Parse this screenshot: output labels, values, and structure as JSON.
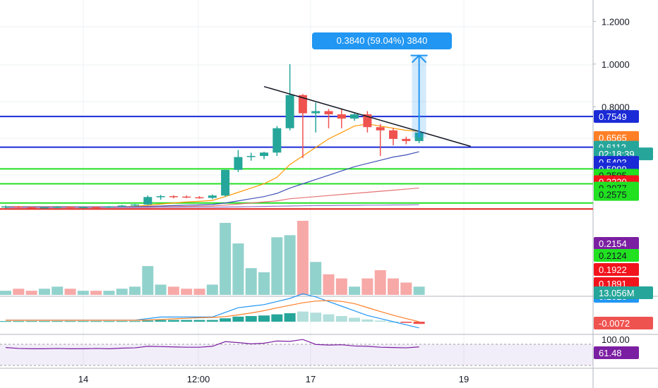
{
  "chart_data": {
    "type": "candlestick",
    "symbol_timeframe": "",
    "x_tick_labels": [
      "14",
      "12:00",
      "17",
      "19"
    ],
    "price_axis": {
      "ylim": [
        0.27,
        1.3
      ],
      "ticks": [
        "1.2000",
        "1.0000",
        "0.8000"
      ]
    },
    "candles": [
      {
        "o": 0.331,
        "h": 0.338,
        "l": 0.325,
        "c": 0.334
      },
      {
        "o": 0.334,
        "h": 0.336,
        "l": 0.326,
        "c": 0.33
      },
      {
        "o": 0.33,
        "h": 0.333,
        "l": 0.324,
        "c": 0.327
      },
      {
        "o": 0.327,
        "h": 0.332,
        "l": 0.324,
        "c": 0.33
      },
      {
        "o": 0.33,
        "h": 0.336,
        "l": 0.327,
        "c": 0.332
      },
      {
        "o": 0.332,
        "h": 0.334,
        "l": 0.326,
        "c": 0.328
      },
      {
        "o": 0.328,
        "h": 0.333,
        "l": 0.325,
        "c": 0.331
      },
      {
        "o": 0.331,
        "h": 0.335,
        "l": 0.327,
        "c": 0.329
      },
      {
        "o": 0.329,
        "h": 0.336,
        "l": 0.328,
        "c": 0.334
      },
      {
        "o": 0.334,
        "h": 0.341,
        "l": 0.331,
        "c": 0.338
      },
      {
        "o": 0.338,
        "h": 0.345,
        "l": 0.333,
        "c": 0.343
      },
      {
        "o": 0.343,
        "h": 0.385,
        "l": 0.34,
        "c": 0.378
      },
      {
        "o": 0.378,
        "h": 0.388,
        "l": 0.365,
        "c": 0.382
      },
      {
        "o": 0.382,
        "h": 0.386,
        "l": 0.372,
        "c": 0.38
      },
      {
        "o": 0.38,
        "h": 0.385,
        "l": 0.373,
        "c": 0.377
      },
      {
        "o": 0.377,
        "h": 0.382,
        "l": 0.37,
        "c": 0.374
      },
      {
        "o": 0.374,
        "h": 0.39,
        "l": 0.368,
        "c": 0.385
      },
      {
        "o": 0.385,
        "h": 0.505,
        "l": 0.38,
        "c": 0.505
      },
      {
        "o": 0.505,
        "h": 0.598,
        "l": 0.495,
        "c": 0.565
      },
      {
        "o": 0.565,
        "h": 0.585,
        "l": 0.548,
        "c": 0.57
      },
      {
        "o": 0.57,
        "h": 0.59,
        "l": 0.555,
        "c": 0.586
      },
      {
        "o": 0.586,
        "h": 0.71,
        "l": 0.57,
        "c": 0.7
      },
      {
        "o": 0.7,
        "h": 1.0,
        "l": 0.69,
        "c": 0.855
      },
      {
        "o": 0.855,
        "h": 0.86,
        "l": 0.56,
        "c": 0.77
      },
      {
        "o": 0.77,
        "h": 0.82,
        "l": 0.68,
        "c": 0.78
      },
      {
        "o": 0.78,
        "h": 0.79,
        "l": 0.7,
        "c": 0.765
      },
      {
        "o": 0.765,
        "h": 0.79,
        "l": 0.7,
        "c": 0.745
      },
      {
        "o": 0.745,
        "h": 0.77,
        "l": 0.735,
        "c": 0.765
      },
      {
        "o": 0.765,
        "h": 0.78,
        "l": 0.68,
        "c": 0.705
      },
      {
        "o": 0.705,
        "h": 0.72,
        "l": 0.57,
        "c": 0.69
      },
      {
        "o": 0.69,
        "h": 0.7,
        "l": 0.62,
        "c": 0.65
      },
      {
        "o": 0.65,
        "h": 0.66,
        "l": 0.625,
        "c": 0.64
      },
      {
        "o": 0.64,
        "h": 0.69,
        "l": 0.63,
        "c": 0.68
      }
    ],
    "moving_averages": [
      {
        "color": "#ff9800",
        "values": [
          0.333,
          0.333,
          0.333,
          0.333,
          0.333,
          0.333,
          0.332,
          0.332,
          0.332,
          0.333,
          0.334,
          0.339,
          0.345,
          0.35,
          0.355,
          0.358,
          0.362,
          0.38,
          0.4,
          0.42,
          0.44,
          0.47,
          0.53,
          0.57,
          0.61,
          0.65,
          0.68,
          0.71,
          0.72,
          0.71,
          0.7,
          0.69,
          0.685
        ]
      },
      {
        "color": "#3f51b5",
        "values": [
          0.332,
          0.332,
          0.332,
          0.332,
          0.332,
          0.332,
          0.332,
          0.332,
          0.332,
          0.332,
          0.333,
          0.334,
          0.336,
          0.338,
          0.34,
          0.341,
          0.343,
          0.35,
          0.36,
          0.37,
          0.38,
          0.395,
          0.42,
          0.44,
          0.46,
          0.48,
          0.5,
          0.52,
          0.535,
          0.55,
          0.565,
          0.575,
          0.59
        ]
      },
      {
        "color": "#e57373",
        "values": [
          0.33,
          0.33,
          0.33,
          0.33,
          0.33,
          0.33,
          0.33,
          0.33,
          0.33,
          0.33,
          0.33,
          0.331,
          0.332,
          0.333,
          0.334,
          0.335,
          0.336,
          0.34,
          0.345,
          0.35,
          0.355,
          0.36,
          0.37,
          0.375,
          0.38,
          0.385,
          0.39,
          0.395,
          0.4,
          0.405,
          0.41,
          0.415,
          0.42
        ]
      },
      {
        "color": "#9575cd",
        "values": [
          0.329,
          0.329,
          0.329,
          0.329,
          0.329,
          0.329,
          0.329,
          0.329,
          0.329,
          0.329,
          0.329,
          0.329,
          0.33,
          0.33,
          0.33,
          0.33,
          0.33,
          0.331,
          0.332,
          0.333,
          0.334,
          0.335,
          0.336,
          0.337,
          0.338,
          0.338,
          0.339,
          0.339,
          0.34,
          0.34,
          0.341,
          0.341,
          0.342
        ]
      }
    ],
    "trend_line": {
      "from_candle": 20,
      "from_price": 0.895,
      "to_candle": 36,
      "to_price": 0.615
    },
    "horizontal_lines": [
      {
        "price": 0.7549,
        "color": "#1a2ad6"
      },
      {
        "price": 0.6112,
        "color": "#1a2ad6"
      },
      {
        "price": 0.5099,
        "color": "#24e024"
      },
      {
        "price": 0.44,
        "color": "#24e024"
      },
      {
        "price": 0.35,
        "color": "#24e024"
      },
      {
        "price": 0.322,
        "color": "#e0201a"
      }
    ],
    "price_tags": [
      {
        "text": "0.7549",
        "price": 0.7549,
        "bg": "#1a2ad6",
        "fg": "#ffffff"
      },
      {
        "text": "0.6565",
        "price": 0.6565,
        "bg": "#ff7f27",
        "fg": "#ffffff"
      },
      {
        "text": "0.6112",
        "price": 0.6112,
        "bg": "#26a69a",
        "fg": "#ffffff"
      },
      {
        "text": "02:18:39",
        "price": 0.58,
        "bg": "#26a69a",
        "fg": "#ffffff"
      },
      {
        "text": "0.5403",
        "price": 0.5403,
        "bg": "#1a2ad6",
        "fg": "#ffffff"
      },
      {
        "text": "0.5099",
        "price": 0.5099,
        "bg": "#1a2ad6",
        "fg": "#ffffff"
      },
      {
        "text": "0.3595",
        "price": 0.48,
        "bg": "#21e121",
        "fg": "#131722"
      },
      {
        "text": "0.3220",
        "price": 0.45,
        "bg": "#f2141d",
        "fg": "#ffffff"
      },
      {
        "text": "0.3077",
        "price": 0.42,
        "bg": "#21e121",
        "fg": "#131722"
      },
      {
        "text": "0.2575",
        "price": 0.39,
        "bg": "#21e121",
        "fg": "#131722"
      }
    ],
    "measure": {
      "label": "0.3840 (59.04%) 3840",
      "from_price": 0.6565,
      "to_price": 1.0405
    },
    "volume": {
      "values": [
        2,
        3,
        2,
        3,
        4,
        3,
        2,
        2,
        2,
        3,
        4,
        14,
        5,
        4,
        3,
        3,
        5,
        35,
        25,
        13,
        11,
        28,
        29,
        36,
        16,
        10,
        8,
        4,
        8,
        12,
        8,
        6,
        4
      ],
      "tags": [
        {
          "text": "0.2154",
          "bg": "#7b1fa2",
          "fg": "#ffffff"
        },
        {
          "text": "0.2124",
          "bg": "#21e121",
          "fg": "#131722"
        },
        {
          "text": "0.1922",
          "bg": "#f2141d",
          "fg": "#ffffff"
        },
        {
          "text": "0.1891",
          "bg": "#f2141d",
          "fg": "#ffffff"
        },
        {
          "text": "0.1026",
          "bg": "#2196f3",
          "fg": "#ffffff"
        },
        {
          "text": "13.056M",
          "bg": "#26a69a",
          "fg": "#ffffff"
        }
      ]
    },
    "macd": {
      "histogram": [
        0.001,
        0.001,
        0.001,
        0.001,
        0.001,
        0.001,
        0.001,
        0.001,
        0.001,
        0.001,
        0.001,
        0.002,
        0.003,
        0.003,
        0.003,
        0.003,
        0.003,
        0.006,
        0.009,
        0.01,
        0.011,
        0.013,
        0.015,
        0.018,
        0.016,
        0.013,
        0.01,
        0.007,
        0.004,
        0.002,
        0.0,
        -0.002,
        -0.004
      ],
      "tag": {
        "text": "-0.0072",
        "bg": "#ef5350",
        "fg": "#ffffff"
      }
    },
    "rsi": {
      "values": [
        44,
        41,
        40,
        40,
        41,
        40,
        40,
        41,
        40,
        42,
        43,
        48,
        47,
        46,
        45,
        45,
        48,
        63,
        60,
        56,
        58,
        65,
        64,
        70,
        54,
        52,
        53,
        49,
        48,
        45,
        44,
        43,
        46
      ],
      "tags": [
        {
          "text": "100.00",
          "bg": "#ffffff",
          "fg": "#131722"
        },
        {
          "text": "61.48",
          "bg": "#7b1fa2",
          "fg": "#ffffff"
        }
      ]
    }
  }
}
